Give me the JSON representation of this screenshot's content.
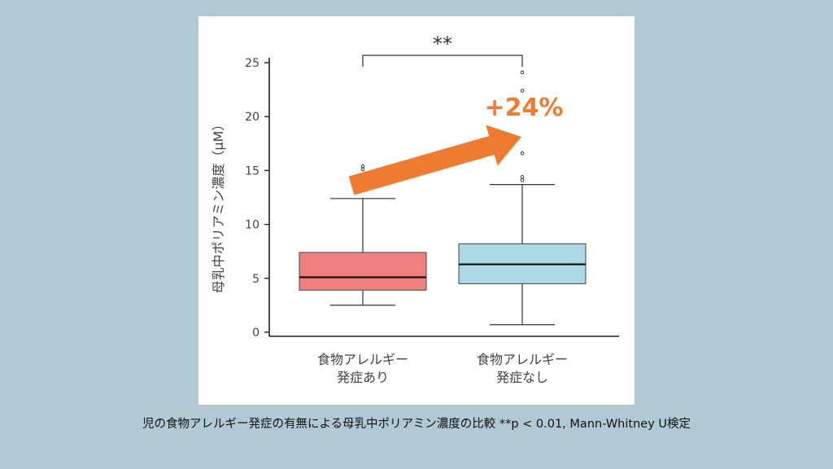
{
  "chart_data": {
    "type": "box",
    "ylabel": "母乳中ポリアミン濃度（μM）",
    "ylim": [
      0,
      25
    ],
    "yticks": [
      0,
      5,
      10,
      15,
      20,
      25
    ],
    "categories": [
      "食物アレルギー\n発症あり",
      "食物アレルギー\n発症なし"
    ],
    "boxes": [
      {
        "category": "食物アレルギー発症あり",
        "whisker_low": 2.5,
        "q1": 3.9,
        "median": 5.1,
        "q3": 7.4,
        "whisker_high": 12.4,
        "outliers": [
          15.1,
          15.4
        ],
        "color": "#f08080"
      },
      {
        "category": "食物アレルギー発症なし",
        "whisker_low": 0.7,
        "q1": 4.5,
        "median": 6.3,
        "q3": 8.2,
        "whisker_high": 13.7,
        "outliers": [
          14.1,
          14.4,
          16.6,
          22.4,
          24.1
        ],
        "color": "#add8e6"
      }
    ],
    "significance": "**",
    "annotation": "+24%",
    "arrow_color": "#ee7b30"
  },
  "caption": "児の食物アレルギー発症の有無による母乳中ポリアミン濃度の比較 **p < 0.01, Mann-Whitney U検定"
}
